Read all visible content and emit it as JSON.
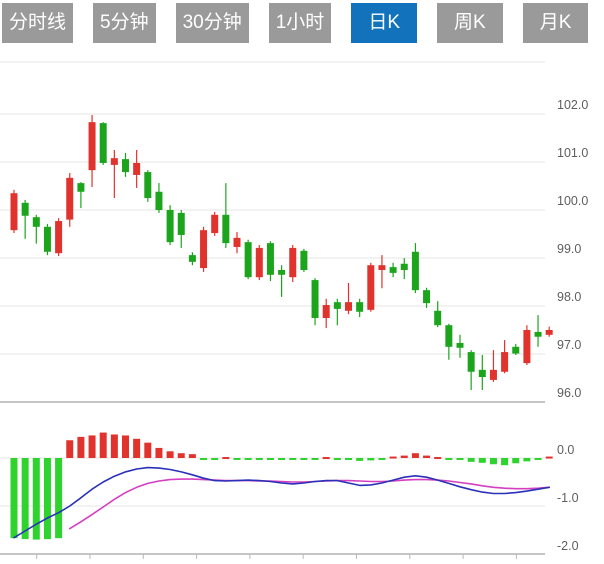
{
  "tabs": [
    {
      "label": "分时线",
      "active": false
    },
    {
      "label": "5分钟",
      "active": false
    },
    {
      "label": "30分钟",
      "active": false
    },
    {
      "label": "1小时",
      "active": false
    },
    {
      "label": "日K",
      "active": true
    },
    {
      "label": "周K",
      "active": false
    },
    {
      "label": "月K",
      "active": false
    }
  ],
  "chart_data": {
    "type": "candlestick",
    "subtype": "daily-kline-with-macd",
    "price_axis": {
      "ticks": [
        "102.0",
        "101.0",
        "100.0",
        "99.0",
        "98.0",
        "97.0",
        "96.0"
      ],
      "tick_values": [
        102,
        101,
        100,
        99,
        98,
        97,
        96
      ],
      "range": [
        95.9,
        103.0
      ],
      "position": "right",
      "grid": true
    },
    "macd_axis": {
      "ticks": [
        "0.0",
        "-1.0",
        "-2.0"
      ],
      "tick_values": [
        0,
        -1,
        -2
      ],
      "range": [
        -2.1,
        0.6
      ],
      "position": "right",
      "grid": true
    },
    "colors": {
      "up": "#e0332e",
      "down": "#1ca51c",
      "hist_up": "#e0332e",
      "hist_down": "#2ed32e",
      "dif_line": "#2a31b8",
      "dea_line": "#d43fc0",
      "grid": "#e4e4e4",
      "axis_line": "#c6c6c6",
      "label": "#5e5e5e",
      "tab_bg": "#9a9a9a",
      "tab_active_bg": "#1273bc"
    },
    "candles_ohlc_format": "[open, high, low, close] — close>=open rendered red (up), close<open green (down)",
    "candles": [
      [
        99.58,
        100.42,
        99.52,
        100.35
      ],
      [
        100.15,
        100.21,
        99.4,
        99.88
      ],
      [
        99.85,
        99.9,
        99.3,
        99.65
      ],
      [
        99.65,
        99.71,
        99.06,
        99.13
      ],
      [
        99.1,
        99.83,
        99.04,
        99.77
      ],
      [
        99.8,
        100.77,
        99.65,
        100.67
      ],
      [
        100.56,
        100.58,
        100.04,
        100.38
      ],
      [
        100.83,
        101.98,
        100.48,
        101.83
      ],
      [
        101.81,
        101.83,
        100.94,
        100.98
      ],
      [
        100.94,
        101.25,
        100.25,
        101.08
      ],
      [
        101.06,
        101.19,
        100.69,
        100.79
      ],
      [
        100.73,
        101.25,
        100.46,
        100.98
      ],
      [
        100.79,
        100.83,
        100.17,
        100.25
      ],
      [
        100.38,
        100.56,
        99.94,
        100.0
      ],
      [
        100.0,
        100.1,
        99.27,
        99.33
      ],
      [
        99.94,
        100.0,
        99.21,
        99.48
      ],
      [
        99.06,
        99.12,
        98.85,
        98.92
      ],
      [
        98.79,
        99.65,
        98.71,
        99.58
      ],
      [
        99.52,
        99.96,
        99.46,
        99.9
      ],
      [
        99.9,
        100.56,
        99.21,
        99.31
      ],
      [
        99.23,
        99.54,
        99.1,
        99.42
      ],
      [
        99.33,
        99.38,
        98.56,
        98.6
      ],
      [
        98.6,
        99.27,
        98.54,
        99.21
      ],
      [
        99.31,
        99.35,
        98.52,
        98.65
      ],
      [
        98.75,
        98.85,
        98.19,
        98.65
      ],
      [
        98.6,
        99.27,
        98.5,
        99.21
      ],
      [
        99.15,
        99.19,
        98.71,
        98.75
      ],
      [
        98.54,
        98.58,
        97.6,
        97.75
      ],
      [
        97.75,
        98.15,
        97.54,
        98.02
      ],
      [
        98.08,
        98.15,
        97.6,
        97.94
      ],
      [
        97.9,
        98.48,
        97.83,
        98.08
      ],
      [
        98.08,
        98.15,
        97.77,
        97.88
      ],
      [
        97.92,
        98.9,
        97.88,
        98.85
      ],
      [
        98.75,
        99.06,
        98.37,
        98.85
      ],
      [
        98.81,
        98.9,
        98.6,
        98.69
      ],
      [
        98.88,
        99.0,
        98.56,
        98.75
      ],
      [
        99.13,
        99.31,
        98.27,
        98.33
      ],
      [
        98.33,
        98.38,
        97.96,
        98.06
      ],
      [
        97.9,
        98.1,
        97.56,
        97.6
      ],
      [
        97.6,
        97.63,
        96.88,
        97.15
      ],
      [
        97.23,
        97.4,
        96.92,
        97.13
      ],
      [
        97.04,
        97.08,
        96.25,
        96.63
      ],
      [
        96.67,
        96.98,
        96.25,
        96.52
      ],
      [
        96.46,
        97.08,
        96.42,
        96.67
      ],
      [
        96.63,
        97.29,
        96.6,
        97.04
      ],
      [
        97.15,
        97.21,
        96.98,
        97.01
      ],
      [
        96.81,
        97.6,
        96.77,
        97.5
      ],
      [
        97.46,
        97.81,
        97.15,
        97.36
      ],
      [
        97.4,
        97.57,
        97.36,
        97.5
      ]
    ],
    "macd": {
      "histogram": [
        -1.67,
        -1.69,
        -1.7,
        -1.69,
        -1.67,
        0.37,
        0.44,
        0.47,
        0.53,
        0.49,
        0.47,
        0.4,
        0.32,
        0.21,
        0.14,
        0.1,
        0.08,
        -0.03,
        -0.04,
        0.02,
        -0.01,
        -0.02,
        -0.03,
        -0.03,
        -0.03,
        -0.03,
        -0.03,
        -0.02,
        0.02,
        -0.01,
        -0.04,
        -0.06,
        -0.05,
        -0.01,
        0.03,
        0.05,
        0.1,
        0.05,
        0.02,
        -0.02,
        -0.04,
        -0.08,
        -0.1,
        -0.13,
        -0.15,
        -0.11,
        -0.07,
        -0.03,
        0.03
      ],
      "dif": [
        -1.66,
        -1.52,
        -1.38,
        -1.25,
        -1.14,
        -1.0,
        -0.83,
        -0.65,
        -0.5,
        -0.38,
        -0.29,
        -0.23,
        -0.2,
        -0.21,
        -0.24,
        -0.29,
        -0.35,
        -0.42,
        -0.47,
        -0.48,
        -0.47,
        -0.46,
        -0.47,
        -0.49,
        -0.52,
        -0.54,
        -0.52,
        -0.49,
        -0.47,
        -0.47,
        -0.52,
        -0.57,
        -0.56,
        -0.52,
        -0.46,
        -0.4,
        -0.37,
        -0.4,
        -0.46,
        -0.53,
        -0.6,
        -0.66,
        -0.71,
        -0.74,
        -0.74,
        -0.72,
        -0.69,
        -0.65,
        -0.61
      ],
      "dea": [
        null,
        null,
        null,
        null,
        null,
        -1.47,
        -1.33,
        -1.18,
        -1.02,
        -0.86,
        -0.72,
        -0.61,
        -0.53,
        -0.48,
        -0.45,
        -0.44,
        -0.44,
        -0.45,
        -0.46,
        -0.47,
        -0.47,
        -0.47,
        -0.48,
        -0.48,
        -0.49,
        -0.5,
        -0.5,
        -0.49,
        -0.48,
        -0.47,
        -0.47,
        -0.48,
        -0.49,
        -0.49,
        -0.48,
        -0.46,
        -0.45,
        -0.45,
        -0.46,
        -0.48,
        -0.51,
        -0.54,
        -0.58,
        -0.61,
        -0.63,
        -0.64,
        -0.64,
        -0.63,
        -0.61
      ]
    },
    "legend": "none",
    "x_axis": {
      "labels_visible": false,
      "tick_marks": 10
    }
  }
}
